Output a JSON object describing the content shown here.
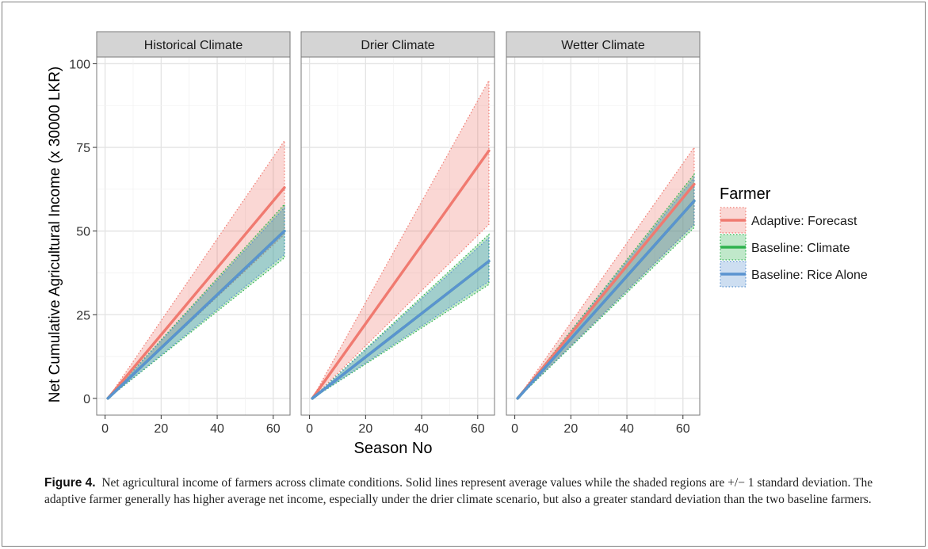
{
  "chart_data": {
    "type": "line",
    "ylabel": "Net Cumulative Agricultural Income (x 30000 LKR)",
    "xlabel": "Season No",
    "xlim": [
      -3,
      66
    ],
    "ylim": [
      -5,
      102
    ],
    "xticks": [
      0,
      20,
      40,
      60
    ],
    "yticks": [
      0,
      25,
      50,
      75,
      100
    ],
    "grid": true,
    "legend": {
      "position": "right",
      "title": "Farmer",
      "entries": [
        "Adaptive: Forecast",
        "Baseline: Climate",
        "Baseline: Rice Alone"
      ]
    },
    "series_colors": {
      "Adaptive: Forecast": "#F07A70",
      "Baseline: Climate": "#2FB24E",
      "Baseline: Rice Alone": "#5A93D0"
    },
    "panels": [
      {
        "title": "Historical Climate",
        "x": [
          1,
          64
        ],
        "series": [
          {
            "name": "Adaptive: Forecast",
            "mean": [
              0,
              63
            ],
            "upper": [
              0,
              77
            ],
            "lower": [
              0,
              49
            ]
          },
          {
            "name": "Baseline: Climate",
            "mean": [
              0,
              50
            ],
            "upper": [
              0,
              58
            ],
            "lower": [
              0,
              42
            ]
          },
          {
            "name": "Baseline: Rice Alone",
            "mean": [
              0,
              50
            ],
            "upper": [
              0,
              57
            ],
            "lower": [
              0,
              43
            ]
          }
        ]
      },
      {
        "title": "Drier Climate",
        "x": [
          1,
          64
        ],
        "series": [
          {
            "name": "Adaptive: Forecast",
            "mean": [
              0,
              74
            ],
            "upper": [
              0,
              95
            ],
            "lower": [
              0,
              52
            ]
          },
          {
            "name": "Baseline: Climate",
            "mean": [
              0,
              41
            ],
            "upper": [
              0,
              49
            ],
            "lower": [
              0,
              34
            ]
          },
          {
            "name": "Baseline: Rice Alone",
            "mean": [
              0,
              41
            ],
            "upper": [
              0,
              48
            ],
            "lower": [
              0,
              35
            ]
          }
        ]
      },
      {
        "title": "Wetter Climate",
        "x": [
          1,
          64
        ],
        "series": [
          {
            "name": "Adaptive: Forecast",
            "mean": [
              0,
              64
            ],
            "upper": [
              0,
              75
            ],
            "lower": [
              0,
              52
            ]
          },
          {
            "name": "Baseline: Climate",
            "mean": [
              0,
              59
            ],
            "upper": [
              0,
              67
            ],
            "lower": [
              0,
              51
            ]
          },
          {
            "name": "Baseline: Rice Alone",
            "mean": [
              0,
              59
            ],
            "upper": [
              0,
              66
            ],
            "lower": [
              0,
              52
            ]
          }
        ]
      }
    ]
  },
  "caption": {
    "label": "Figure 4.",
    "text": "Net agricultural income of farmers across climate conditions. Solid lines represent average values while the shaded regions are +/− 1 standard deviation. The adaptive farmer generally has higher average net income, especially under the drier climate scenario, but also a greater standard deviation than the two baseline farmers."
  }
}
